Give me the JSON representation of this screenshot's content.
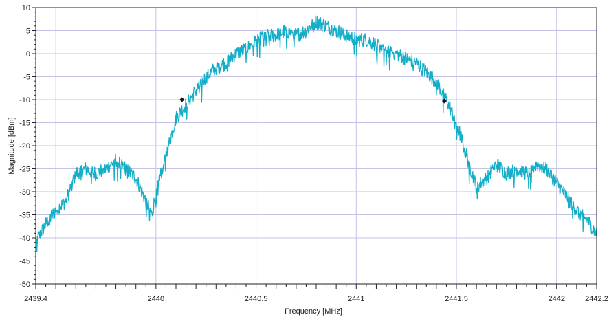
{
  "chart_data": {
    "type": "line",
    "xlabel": "Frequency [MHz]",
    "ylabel": "Magnitude [dBm]",
    "xlim": [
      2439.4,
      2442.2
    ],
    "ylim": [
      -50,
      10
    ],
    "x_ticks": [
      2439.4,
      2440,
      2440.5,
      2441,
      2441.5,
      2442,
      2442.2
    ],
    "x_tick_labels": [
      "2439.4",
      "2440",
      "2440.5",
      "2441",
      "2441.5",
      "2442",
      "2442.2"
    ],
    "y_ticks": [
      10,
      5,
      0,
      -5,
      -10,
      -15,
      -20,
      -25,
      -30,
      -35,
      -40,
      -45,
      -50
    ],
    "y_tick_labels": [
      "10",
      "5",
      "0",
      "-5",
      "-10",
      "-15",
      "-20",
      "-25",
      "-30",
      "-35",
      "-40",
      "-45",
      "-50"
    ],
    "x_grid": [
      2439.5,
      2440,
      2440.5,
      2441,
      2441.5,
      2442
    ],
    "grid": true,
    "series": [
      {
        "color": "#13aec8",
        "x": [
          2439.4,
          2439.45,
          2439.5,
          2439.55,
          2439.6,
          2439.65,
          2439.7,
          2439.75,
          2439.8,
          2439.85,
          2439.9,
          2439.95,
          2439.98,
          2440.0,
          2440.05,
          2440.1,
          2440.15,
          2440.2,
          2440.25,
          2440.3,
          2440.35,
          2440.4,
          2440.45,
          2440.5,
          2440.55,
          2440.6,
          2440.65,
          2440.7,
          2440.75,
          2440.8,
          2440.85,
          2440.9,
          2440.95,
          2441.0,
          2441.05,
          2441.1,
          2441.15,
          2441.2,
          2441.25,
          2441.3,
          2441.35,
          2441.4,
          2441.45,
          2441.5,
          2441.55,
          2441.6,
          2441.65,
          2441.7,
          2441.75,
          2441.8,
          2441.85,
          2441.9,
          2441.95,
          2442.0,
          2442.05,
          2442.1,
          2442.15,
          2442.2
        ],
        "y": [
          -41,
          -37,
          -34,
          -32,
          -26,
          -25,
          -26,
          -25,
          -23,
          -25,
          -27,
          -32,
          -35,
          -30,
          -22,
          -14,
          -11,
          -8,
          -5,
          -3,
          -2,
          0,
          1,
          3,
          4,
          4,
          5,
          4,
          5,
          7,
          6,
          5,
          4,
          3,
          3,
          2,
          1,
          0,
          -1,
          -2,
          -4,
          -6,
          -10,
          -15,
          -22,
          -29,
          -27,
          -24,
          -26,
          -25,
          -26,
          -24,
          -25,
          -28,
          -31,
          -34,
          -36,
          -39
        ]
      }
    ],
    "markers": [
      {
        "x": 2440.13,
        "y": -10
      },
      {
        "x": 2441.44,
        "y": -10.3
      }
    ]
  }
}
